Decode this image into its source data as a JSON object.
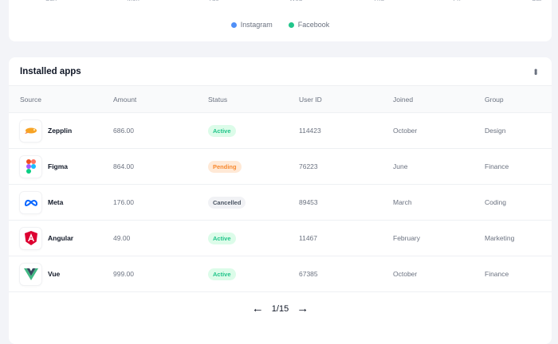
{
  "chart": {
    "x_ticks": [
      "Sun",
      "Mon",
      "Tue",
      "Wed",
      "Thu",
      "Fri",
      "Sat"
    ],
    "legend": [
      {
        "name": "Instagram",
        "color": "#4f8ff7"
      },
      {
        "name": "Facebook",
        "color": "#22c58b"
      }
    ]
  },
  "apps": {
    "title": "Installed apps",
    "menu_icon": "more-vertical-icon",
    "columns": [
      "Source",
      "Amount",
      "Status",
      "User ID",
      "Joined",
      "Group"
    ],
    "rows": [
      {
        "source": "Zepplin",
        "amount": "686.00",
        "status": "Active",
        "user_id": "114423",
        "joined": "October",
        "group": "Design"
      },
      {
        "source": "Figma",
        "amount": "864.00",
        "status": "Pending",
        "user_id": "76223",
        "joined": "June",
        "group": "Finance"
      },
      {
        "source": "Meta",
        "amount": "176.00",
        "status": "Cancelled",
        "user_id": "89453",
        "joined": "March",
        "group": "Coding"
      },
      {
        "source": "Angular",
        "amount": "49.00",
        "status": "Active",
        "user_id": "11467",
        "joined": "February",
        "group": "Marketing"
      },
      {
        "source": "Vue",
        "amount": "999.00",
        "status": "Active",
        "user_id": "67385",
        "joined": "October",
        "group": "Finance"
      }
    ],
    "status_colors": {
      "Active": {
        "bg": "#dcfce9",
        "fg": "#22c58b"
      },
      "Pending": {
        "bg": "#ffe9d6",
        "fg": "#f7892f"
      },
      "Cancelled": {
        "bg": "#f1f2f5",
        "fg": "#4b5563"
      }
    },
    "pagination": {
      "label": "1/15",
      "prev": "←",
      "next": "→"
    }
  }
}
